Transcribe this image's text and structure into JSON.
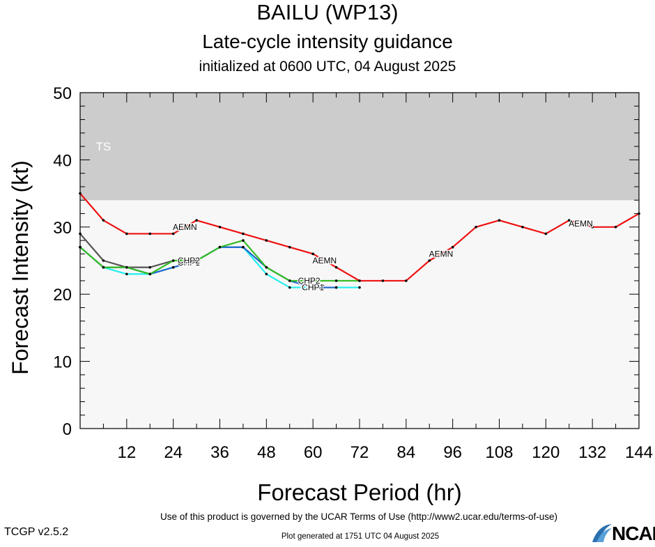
{
  "header": {
    "title": "BAILU (WP13)",
    "subtitle": "Late-cycle intensity guidance",
    "initialized": "initialized at 0600 UTC, 04 August 2025"
  },
  "footer": {
    "terms": "Use of this product is governed by the UCAR Terms of Use (http://www2.ucar.edu/terms-of-use)",
    "version": "TCGP v2.5.2",
    "generated": "Plot generated at 1751 UTC   04 August 2025",
    "logo_text": "NCAR"
  },
  "chart_data": {
    "type": "line",
    "xlabel": "Forecast Period (hr)",
    "ylabel": "Forecast Intensity (kt)",
    "xlim": [
      0,
      144
    ],
    "ylim": [
      0,
      50
    ],
    "xticks": [
      12,
      24,
      36,
      48,
      60,
      72,
      84,
      96,
      108,
      120,
      132,
      144
    ],
    "yticks": [
      0,
      10,
      20,
      30,
      40,
      50
    ],
    "bands": [
      {
        "label": "TS",
        "from": 34,
        "to": 50,
        "color": "#cccccc"
      }
    ],
    "below_band_color": "#f7f7f7",
    "series": [
      {
        "name": "AEMN",
        "color": "#ee1111",
        "x": [
          0,
          6,
          12,
          18,
          24,
          30,
          36,
          42,
          48,
          54,
          60,
          66,
          72,
          78,
          84,
          90,
          96,
          102,
          108,
          114,
          120,
          126,
          132,
          138,
          144
        ],
        "y": [
          35,
          31,
          29,
          29,
          29,
          31,
          30,
          29,
          28,
          27,
          26,
          24,
          22,
          22,
          22,
          25,
          27,
          30,
          31,
          30,
          29,
          31,
          30,
          30,
          32
        ],
        "label_x": [
          27,
          63,
          93,
          129
        ]
      },
      {
        "name": "CHP2",
        "color": "#33bb22",
        "x": [
          0,
          6,
          12,
          18,
          24,
          30,
          36,
          42,
          48,
          54,
          60,
          66,
          72
        ],
        "y": [
          27,
          24,
          24,
          23,
          25,
          25,
          27,
          28,
          24,
          22,
          22,
          22,
          22
        ],
        "label_x": [
          28,
          59
        ]
      },
      {
        "name": "CHIP",
        "color": "#555555",
        "x": [
          0,
          6,
          12,
          18,
          24
        ],
        "y": [
          29,
          25,
          24,
          24,
          25
        ],
        "label_x": [
          28
        ]
      },
      {
        "name": "CHP1",
        "color": "#2266cc",
        "x": [
          0,
          6,
          12,
          18,
          24,
          30,
          36,
          42,
          48,
          54,
          60,
          66
        ],
        "y": [
          27,
          24,
          24,
          23,
          24,
          25,
          27,
          27,
          24,
          22,
          21,
          21
        ],
        "label_x": [
          28,
          60
        ]
      },
      {
        "name": "CHPC",
        "color": "#22eeee",
        "x": [
          0,
          6,
          12,
          18,
          24,
          30,
          36,
          42,
          48,
          54,
          60,
          66,
          72
        ],
        "y": [
          27,
          24,
          23,
          23,
          24,
          25,
          27,
          27,
          23,
          21,
          21,
          21,
          21
        ],
        "label_x": [
          28,
          60
        ]
      }
    ]
  }
}
